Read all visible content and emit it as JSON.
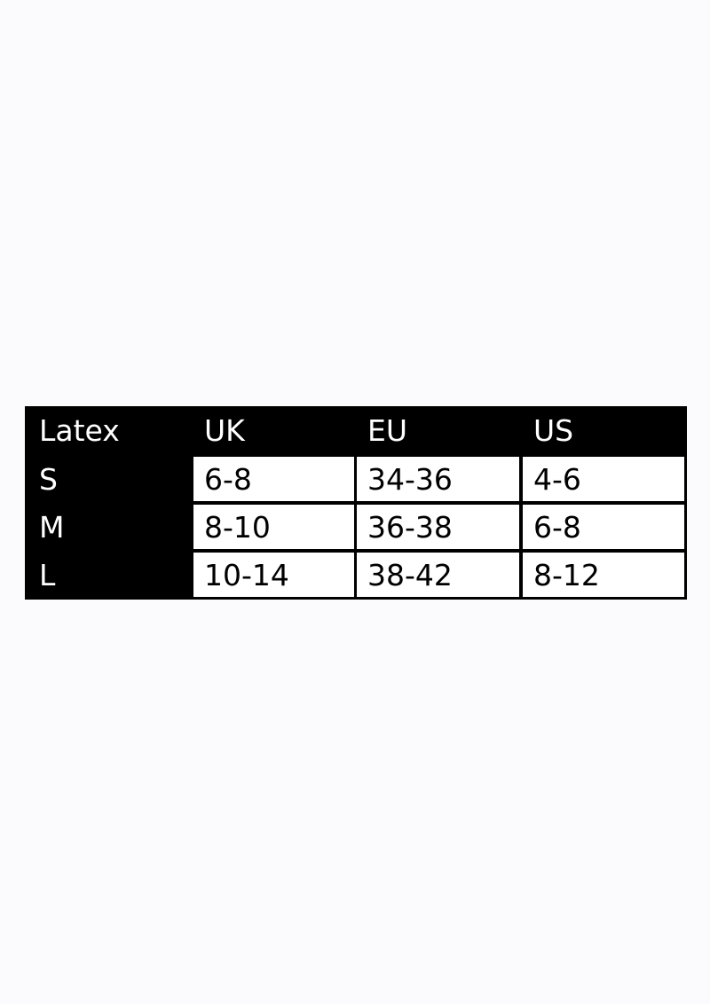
{
  "table": {
    "header": [
      "Latex",
      "UK",
      "EU",
      "US"
    ],
    "rows": [
      [
        "S",
        "6-8",
        "34-36",
        "4-6"
      ],
      [
        "M",
        "8-10",
        "36-38",
        "6-8"
      ],
      [
        "L",
        "10-14",
        "38-42",
        "8-12"
      ]
    ]
  }
}
